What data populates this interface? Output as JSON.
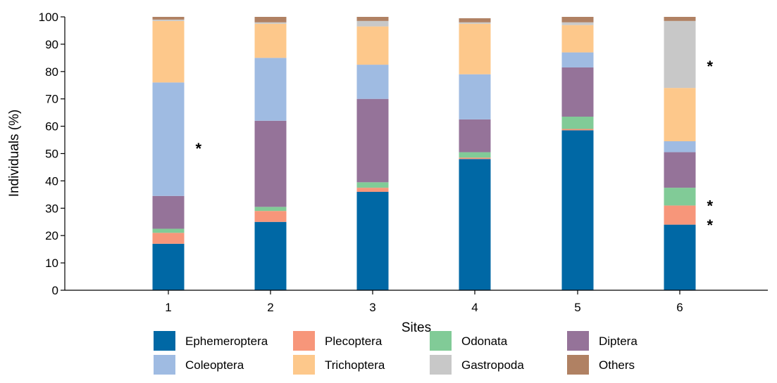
{
  "chart_data": {
    "type": "bar",
    "stacked": true,
    "categories": [
      "1",
      "2",
      "3",
      "4",
      "5",
      "6"
    ],
    "xlabel": "Sites",
    "ylabel": "Individuals (%)",
    "ylim": [
      0,
      100
    ],
    "yticks": [
      0,
      10,
      20,
      30,
      40,
      50,
      60,
      70,
      80,
      90,
      100
    ],
    "grid": false,
    "legend_position": "bottom",
    "series": [
      {
        "name": "Ephemeroptera",
        "color": "#0068a5",
        "values": [
          17,
          25,
          36,
          48,
          58.5,
          24
        ]
      },
      {
        "name": "Plecoptera",
        "color": "#f7967a",
        "values": [
          4,
          4,
          1.5,
          0.5,
          0.5,
          7
        ]
      },
      {
        "name": "Odonata",
        "color": "#81cb97",
        "values": [
          1.5,
          1.5,
          2,
          2,
          4.5,
          6.5
        ]
      },
      {
        "name": "Diptera",
        "color": "#957399",
        "values": [
          12,
          31.5,
          30.5,
          12,
          18,
          13
        ]
      },
      {
        "name": "Coleoptera",
        "color": "#9fbbe2",
        "values": [
          41.5,
          23,
          12.5,
          16.5,
          5.5,
          4
        ]
      },
      {
        "name": "Trichoptera",
        "color": "#fdc88b",
        "values": [
          22.5,
          12.5,
          14,
          18.5,
          10,
          19.5
        ]
      },
      {
        "name": "Gastropoda",
        "color": "#c8c8c8",
        "values": [
          0.5,
          0.5,
          2,
          0.5,
          1,
          24.5
        ]
      },
      {
        "name": "Others",
        "color": "#b08163",
        "values": [
          1,
          2,
          1.5,
          1.5,
          2,
          1.5
        ]
      }
    ],
    "annotations": [
      {
        "text": "*",
        "category": "1",
        "y": 53
      },
      {
        "text": "*",
        "category": "6",
        "y": 83
      },
      {
        "text": "*",
        "category": "6",
        "y": 32
      },
      {
        "text": "*",
        "category": "6",
        "y": 25
      }
    ]
  }
}
